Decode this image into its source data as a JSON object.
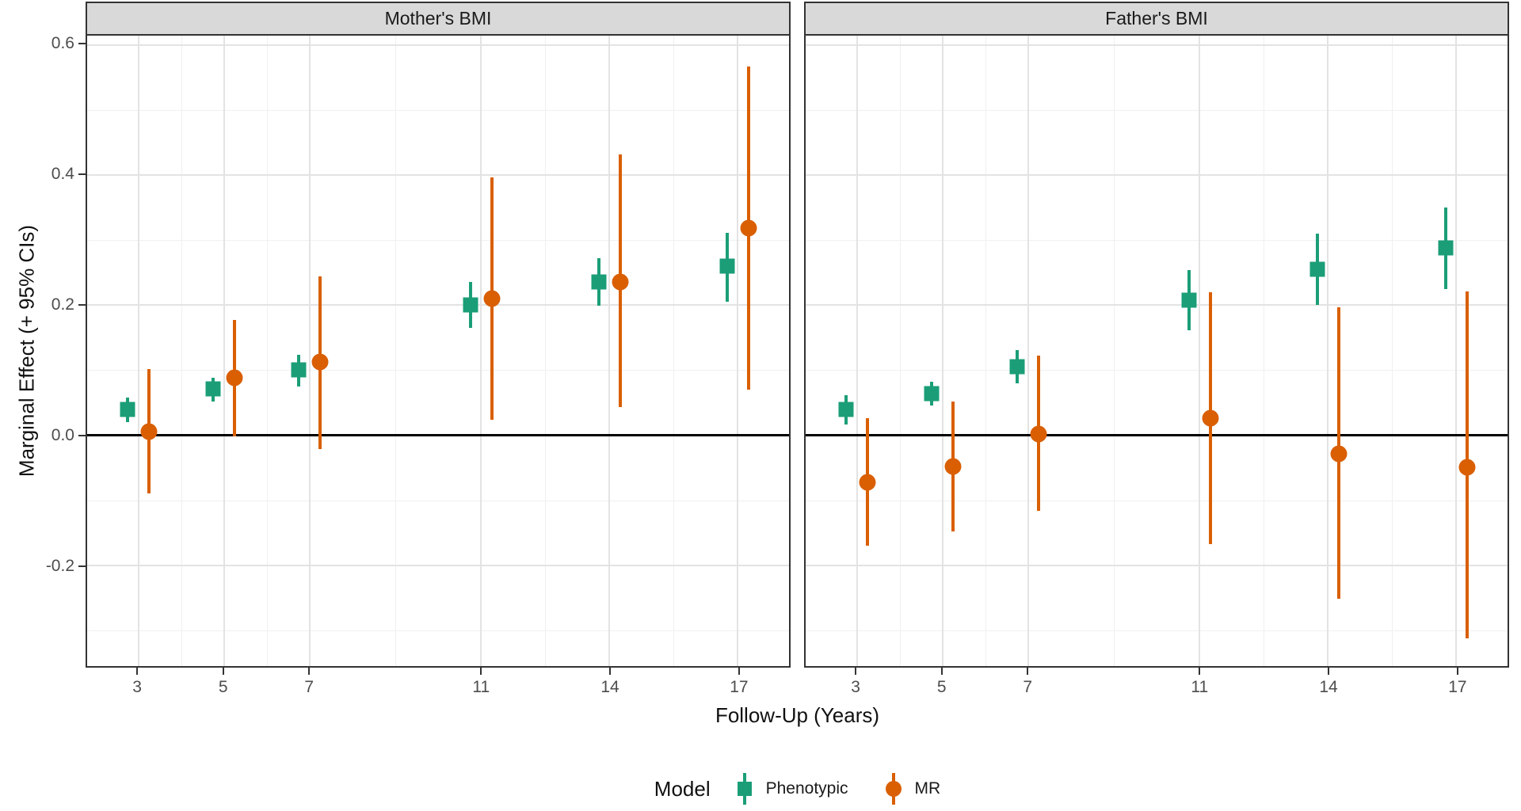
{
  "chart_data": {
    "type": "scatter",
    "subtype": "pointrange-errorbar",
    "title": "",
    "xlabel": "Follow-Up (Years)",
    "ylabel": "Marginal Effect (+ 95% CIs)",
    "xlim": [
      1.8,
      18.2
    ],
    "ylim": [
      -0.355,
      0.614
    ],
    "grid": "on",
    "x_major_breaks": [
      3,
      5,
      7,
      11,
      14,
      17
    ],
    "x_minor_breaks": [
      4,
      6,
      9,
      12.5,
      15.5
    ],
    "x_tick_labels": [
      "3",
      "5",
      "7",
      "11",
      "14",
      "17"
    ],
    "y_major_breaks": [
      0.6,
      0.4,
      0.2,
      0.0,
      -0.2
    ],
    "y_minor_breaks": [
      0.5,
      0.3,
      0.1,
      -0.1,
      -0.3
    ],
    "y_tick_labels": [
      "0.6",
      "0.4",
      "0.2",
      "0.0",
      "-0.2"
    ],
    "zero_reference_line": 0.0,
    "dodge_offset": 0.25,
    "legend": {
      "title": "Model",
      "position": "bottom",
      "entries": [
        {
          "label": "Phenotypic",
          "shape": "square",
          "color": "#1B9E77"
        },
        {
          "label": "MR",
          "shape": "circle",
          "color": "#D95F02"
        }
      ]
    },
    "facets": [
      {
        "title": "Mother's BMI",
        "series": [
          {
            "name": "Phenotypic",
            "shape": "square",
            "color": "#1B9E77",
            "points": [
              {
                "x": 3,
                "est": 0.039,
                "lo": 0.02,
                "hi": 0.058
              },
              {
                "x": 5,
                "est": 0.071,
                "lo": 0.052,
                "hi": 0.088
              },
              {
                "x": 7,
                "est": 0.1,
                "lo": 0.075,
                "hi": 0.123
              },
              {
                "x": 11,
                "est": 0.2,
                "lo": 0.165,
                "hi": 0.235
              },
              {
                "x": 14,
                "est": 0.235,
                "lo": 0.199,
                "hi": 0.272
              },
              {
                "x": 17,
                "est": 0.26,
                "lo": 0.205,
                "hi": 0.311
              }
            ]
          },
          {
            "name": "MR",
            "shape": "circle",
            "color": "#D95F02",
            "points": [
              {
                "x": 3,
                "est": 0.005,
                "lo": -0.09,
                "hi": 0.101
              },
              {
                "x": 5,
                "est": 0.088,
                "lo": -0.002,
                "hi": 0.177
              },
              {
                "x": 7,
                "est": 0.112,
                "lo": -0.022,
                "hi": 0.244
              },
              {
                "x": 11,
                "est": 0.21,
                "lo": 0.023,
                "hi": 0.396
              },
              {
                "x": 14,
                "est": 0.236,
                "lo": 0.043,
                "hi": 0.431
              },
              {
                "x": 17,
                "est": 0.318,
                "lo": 0.07,
                "hi": 0.566
              }
            ]
          }
        ]
      },
      {
        "title": "Father's BMI",
        "series": [
          {
            "name": "Phenotypic",
            "shape": "square",
            "color": "#1B9E77",
            "points": [
              {
                "x": 3,
                "est": 0.04,
                "lo": 0.016,
                "hi": 0.061
              },
              {
                "x": 5,
                "est": 0.064,
                "lo": 0.045,
                "hi": 0.082
              },
              {
                "x": 7,
                "est": 0.105,
                "lo": 0.08,
                "hi": 0.131
              },
              {
                "x": 11,
                "est": 0.208,
                "lo": 0.161,
                "hi": 0.254
              },
              {
                "x": 14,
                "est": 0.255,
                "lo": 0.2,
                "hi": 0.31
              },
              {
                "x": 17,
                "est": 0.288,
                "lo": 0.224,
                "hi": 0.35
              }
            ]
          },
          {
            "name": "MR",
            "shape": "circle",
            "color": "#D95F02",
            "points": [
              {
                "x": 3,
                "est": -0.072,
                "lo": -0.17,
                "hi": 0.026
              },
              {
                "x": 5,
                "est": -0.048,
                "lo": -0.148,
                "hi": 0.051
              },
              {
                "x": 7,
                "est": 0.002,
                "lo": -0.117,
                "hi": 0.122
              },
              {
                "x": 11,
                "est": 0.026,
                "lo": -0.167,
                "hi": 0.22
              },
              {
                "x": 14,
                "est": -0.029,
                "lo": -0.251,
                "hi": 0.196
              },
              {
                "x": 17,
                "est": -0.05,
                "lo": -0.313,
                "hi": 0.221
              }
            ]
          }
        ]
      }
    ],
    "style": {
      "strip_fill": "#D9D9D9",
      "strip_border": "#333333",
      "panel_border": "#333333",
      "grid_major_color": "#E3E3E3",
      "grid_minor_color": "#F0F0F0",
      "zero_line_color": "#000000",
      "tick_text_color": "#4D4D4D",
      "title_text_color": "#111111"
    }
  },
  "layout_note": "two-facet pointrange chart, legend bottom center"
}
